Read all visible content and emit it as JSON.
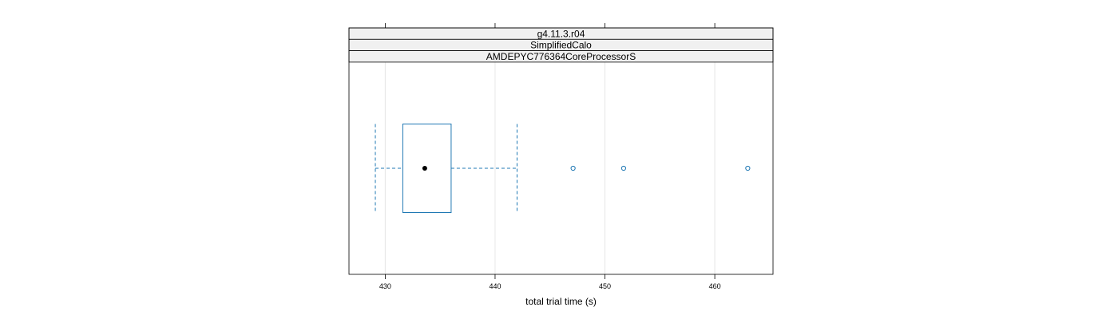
{
  "chart_data": {
    "type": "boxplot",
    "orientation": "horizontal",
    "strips": [
      "g4.11.3.r04",
      "SimplifiedCalo",
      "AMDEPYC776364CoreProcessorS"
    ],
    "xlabel": "total trial time (s)",
    "xlim": [
      426.7,
      465.3
    ],
    "x_ticks": [
      430,
      440,
      450,
      460
    ],
    "grid": true,
    "box": {
      "whisker_low": 429.1,
      "q1": 431.6,
      "median": 433.6,
      "q3": 436.0,
      "whisker_high": 442.0
    },
    "outliers": [
      447.1,
      451.7,
      463.0
    ]
  },
  "colors": {
    "box": "#0080ff",
    "box_stroke": "#1f78b4",
    "whisker": "#1f78b4",
    "median_dot": "#000000",
    "strip_fill": "#f0f0f0",
    "grid": "#e6e6e6",
    "frame": "#000000"
  }
}
